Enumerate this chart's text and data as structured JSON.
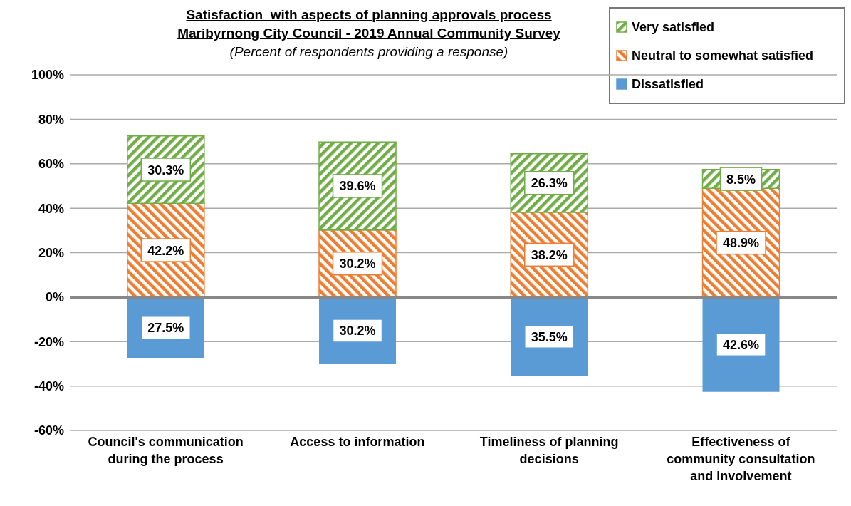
{
  "chart_data": {
    "type": "bar",
    "stacked": true,
    "title": "Satisfaction  with aspects of planning approvals process\nMaribyrnong City Council - 2019 Annual Community Survey",
    "subtitle": "(Percent of respondents providing a response)",
    "categories": [
      "Council's communication during the process",
      "Access to information",
      "Timeliness of planning decisions",
      "Effectiveness of community consultation and involvement"
    ],
    "series": [
      {
        "name": "Dissatisfied",
        "color": "#5b9bd5",
        "base": [
          -27.5,
          -30.2,
          -35.5,
          -42.6
        ],
        "values": [
          27.5,
          30.2,
          35.5,
          42.6
        ],
        "value_labels": [
          "27.5%",
          "30.2%",
          "35.5%",
          "42.6%"
        ]
      },
      {
        "name": "Neutral to somewhat satisfied",
        "color": "#ed7d31",
        "values": [
          42.2,
          30.2,
          38.2,
          48.9
        ],
        "value_labels": [
          "42.2%",
          "30.2%",
          "38.2%",
          "48.9%"
        ]
      },
      {
        "name": "Very satisfied",
        "color": "#70ad47",
        "values": [
          30.3,
          39.6,
          26.3,
          8.5
        ],
        "value_labels": [
          "30.3%",
          "39.6%",
          "26.3%",
          "8.5%"
        ]
      }
    ],
    "ylim": [
      -60,
      100
    ],
    "yticks": [
      {
        "value": -60,
        "label": "-60%"
      },
      {
        "value": -40,
        "label": "-40%"
      },
      {
        "value": -20,
        "label": "-20%"
      },
      {
        "value": 0,
        "label": "0%"
      },
      {
        "value": 20,
        "label": "20%"
      },
      {
        "value": 40,
        "label": "40%"
      },
      {
        "value": 60,
        "label": "60%"
      },
      {
        "value": 80,
        "label": "80%"
      },
      {
        "value": 100,
        "label": "100%"
      }
    ],
    "grid": "y",
    "legend": "top right"
  }
}
